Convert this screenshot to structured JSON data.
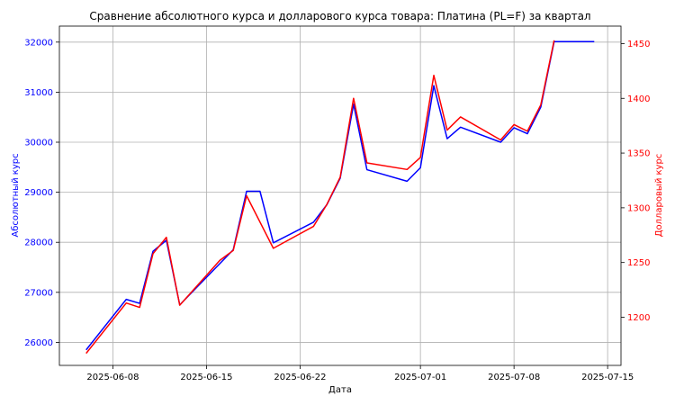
{
  "chart_data": {
    "type": "line",
    "title": "Сравнение абсолютного курса и долларового курса товара: Платина (PL=F) за квартал",
    "xlabel": "Дата",
    "ylabel_left": "Абсолютный курс",
    "ylabel_right": "Долларовый курс",
    "grid": true,
    "colors": {
      "left": "#0000ff",
      "right": "#ff0000"
    },
    "x_range": [
      "2025-06-04",
      "2025-07-16"
    ],
    "ylim_left": [
      25540,
      32320
    ],
    "ylim_right": [
      1156,
      1466
    ],
    "x_ticks": [
      "2025-06-08",
      "2025-06-15",
      "2025-06-22",
      "2025-07-01",
      "2025-07-08",
      "2025-07-15"
    ],
    "y_left_ticks": [
      26000,
      27000,
      28000,
      29000,
      30000,
      31000,
      32000
    ],
    "y_right_ticks": [
      1200,
      1250,
      1300,
      1350,
      1400,
      1450
    ],
    "series": [
      {
        "axis": "left",
        "color": "#0000ff",
        "points": [
          [
            "2025-06-06",
            25850
          ],
          [
            "2025-06-09",
            26860
          ],
          [
            "2025-06-10",
            26780
          ],
          [
            "2025-06-11",
            27820
          ],
          [
            "2025-06-12",
            28040
          ],
          [
            "2025-06-13",
            26750
          ],
          [
            "2025-06-17",
            27850
          ],
          [
            "2025-06-18",
            29020
          ],
          [
            "2025-06-19",
            29020
          ],
          [
            "2025-06-20",
            27990
          ],
          [
            "2025-06-23",
            28400
          ],
          [
            "2025-06-24",
            28750
          ],
          [
            "2025-06-25",
            29280
          ],
          [
            "2025-06-26",
            30760
          ],
          [
            "2025-06-27",
            29450
          ],
          [
            "2025-06-30",
            29220
          ],
          [
            "2025-07-01",
            29490
          ],
          [
            "2025-07-02",
            31130
          ],
          [
            "2025-07-03",
            30070
          ],
          [
            "2025-07-04",
            30300
          ],
          [
            "2025-07-07",
            30000
          ],
          [
            "2025-07-08",
            30290
          ],
          [
            "2025-07-09",
            30170
          ],
          [
            "2025-07-10",
            30700
          ],
          [
            "2025-07-11",
            32010
          ],
          [
            "2025-07-14",
            32010
          ]
        ]
      },
      {
        "axis": "right",
        "color": "#ff0000",
        "points": [
          [
            "2025-06-06",
            1167
          ],
          [
            "2025-06-09",
            1213
          ],
          [
            "2025-06-10",
            1209
          ],
          [
            "2025-06-11",
            1258
          ],
          [
            "2025-06-12",
            1273
          ],
          [
            "2025-06-13",
            1211
          ],
          [
            "2025-06-16",
            1252
          ],
          [
            "2025-06-17",
            1261
          ],
          [
            "2025-06-18",
            1311
          ],
          [
            "2025-06-20",
            1263
          ],
          [
            "2025-06-23",
            1283
          ],
          [
            "2025-06-24",
            1303
          ],
          [
            "2025-06-25",
            1328
          ],
          [
            "2025-06-26",
            1400
          ],
          [
            "2025-06-27",
            1341
          ],
          [
            "2025-06-30",
            1335
          ],
          [
            "2025-07-01",
            1346
          ],
          [
            "2025-07-02",
            1421
          ],
          [
            "2025-07-03",
            1371
          ],
          [
            "2025-07-04",
            1383
          ],
          [
            "2025-07-07",
            1362
          ],
          [
            "2025-07-08",
            1376
          ],
          [
            "2025-07-09",
            1370
          ],
          [
            "2025-07-10",
            1394
          ],
          [
            "2025-07-11",
            1453
          ]
        ]
      }
    ]
  }
}
